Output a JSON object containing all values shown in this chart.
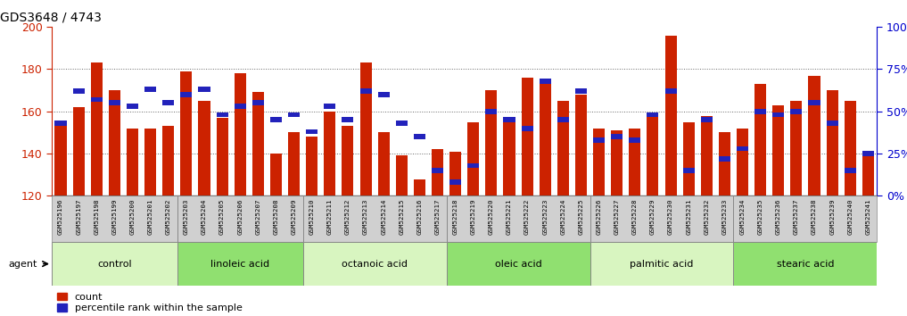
{
  "title": "GDS3648 / 4743",
  "samples": [
    "GSM525196",
    "GSM525197",
    "GSM525198",
    "GSM525199",
    "GSM525200",
    "GSM525201",
    "GSM525202",
    "GSM525203",
    "GSM525204",
    "GSM525205",
    "GSM525206",
    "GSM525207",
    "GSM525208",
    "GSM525209",
    "GSM525210",
    "GSM525211",
    "GSM525212",
    "GSM525213",
    "GSM525214",
    "GSM525215",
    "GSM525216",
    "GSM525217",
    "GSM525218",
    "GSM525219",
    "GSM525220",
    "GSM525221",
    "GSM525222",
    "GSM525223",
    "GSM525224",
    "GSM525225",
    "GSM525226",
    "GSM525227",
    "GSM525228",
    "GSM525229",
    "GSM525230",
    "GSM525231",
    "GSM525232",
    "GSM525233",
    "GSM525234",
    "GSM525235",
    "GSM525236",
    "GSM525237",
    "GSM525238",
    "GSM525239",
    "GSM525240",
    "GSM525241"
  ],
  "counts": [
    153,
    162,
    183,
    170,
    152,
    152,
    153,
    179,
    165,
    157,
    178,
    169,
    140,
    150,
    148,
    160,
    153,
    183,
    150,
    139,
    128,
    142,
    141,
    155,
    170,
    156,
    176,
    175,
    165,
    168,
    152,
    151,
    152,
    158,
    196,
    155,
    158,
    150,
    152,
    173,
    163,
    165,
    177,
    170,
    165,
    140
  ],
  "percentiles": [
    43,
    62,
    57,
    55,
    53,
    63,
    55,
    60,
    63,
    48,
    53,
    55,
    45,
    48,
    38,
    53,
    45,
    62,
    60,
    43,
    35,
    15,
    8,
    18,
    50,
    45,
    40,
    68,
    45,
    62,
    33,
    35,
    33,
    48,
    62,
    15,
    45,
    22,
    28,
    50,
    48,
    50,
    55,
    43,
    15,
    25
  ],
  "groups": [
    {
      "label": "control",
      "start": 0,
      "end": 7,
      "color": "#d8f5c0"
    },
    {
      "label": "linoleic acid",
      "start": 7,
      "end": 14,
      "color": "#90e070"
    },
    {
      "label": "octanoic acid",
      "start": 14,
      "end": 22,
      "color": "#d8f5c0"
    },
    {
      "label": "oleic acid",
      "start": 22,
      "end": 30,
      "color": "#90e070"
    },
    {
      "label": "palmitic acid",
      "start": 30,
      "end": 38,
      "color": "#d8f5c0"
    },
    {
      "label": "stearic acid",
      "start": 38,
      "end": 46,
      "color": "#90e070"
    }
  ],
  "ylim_left": [
    120,
    200
  ],
  "ylim_right": [
    0,
    100
  ],
  "bar_color_red": "#cc2200",
  "bar_color_blue": "#2222bb",
  "tick_color_left": "#cc2200",
  "tick_color_right": "#0000cc",
  "grid_color": "#666666",
  "bar_width": 0.65,
  "legend_count_label": "count",
  "legend_pct_label": "percentile rank within the sample",
  "agent_label": "agent",
  "xlabel_bg_color": "#d0d0d0",
  "group_separator_color": "#888888"
}
